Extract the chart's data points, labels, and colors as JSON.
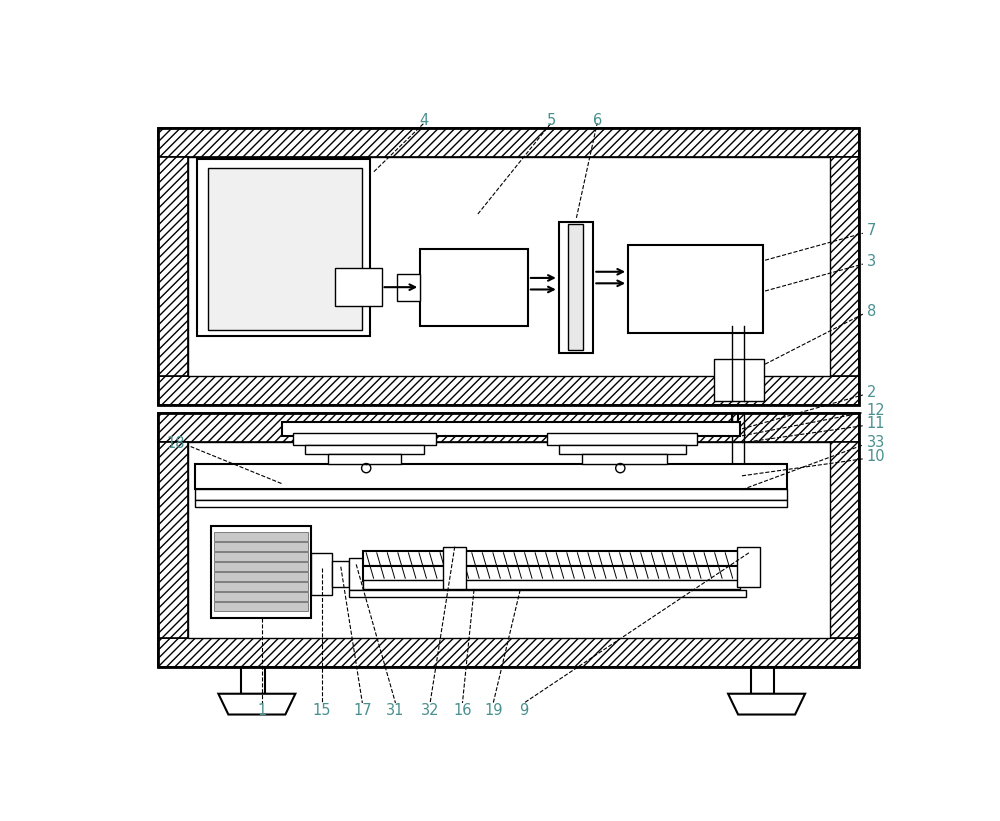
{
  "bg_color": "#ffffff",
  "line_color": "#000000",
  "label_color": "#4a9090",
  "figsize": [
    10.0,
    8.21
  ],
  "dpi": 100,
  "hatch_pattern": "////",
  "hatch_color": "#aaaaaa"
}
